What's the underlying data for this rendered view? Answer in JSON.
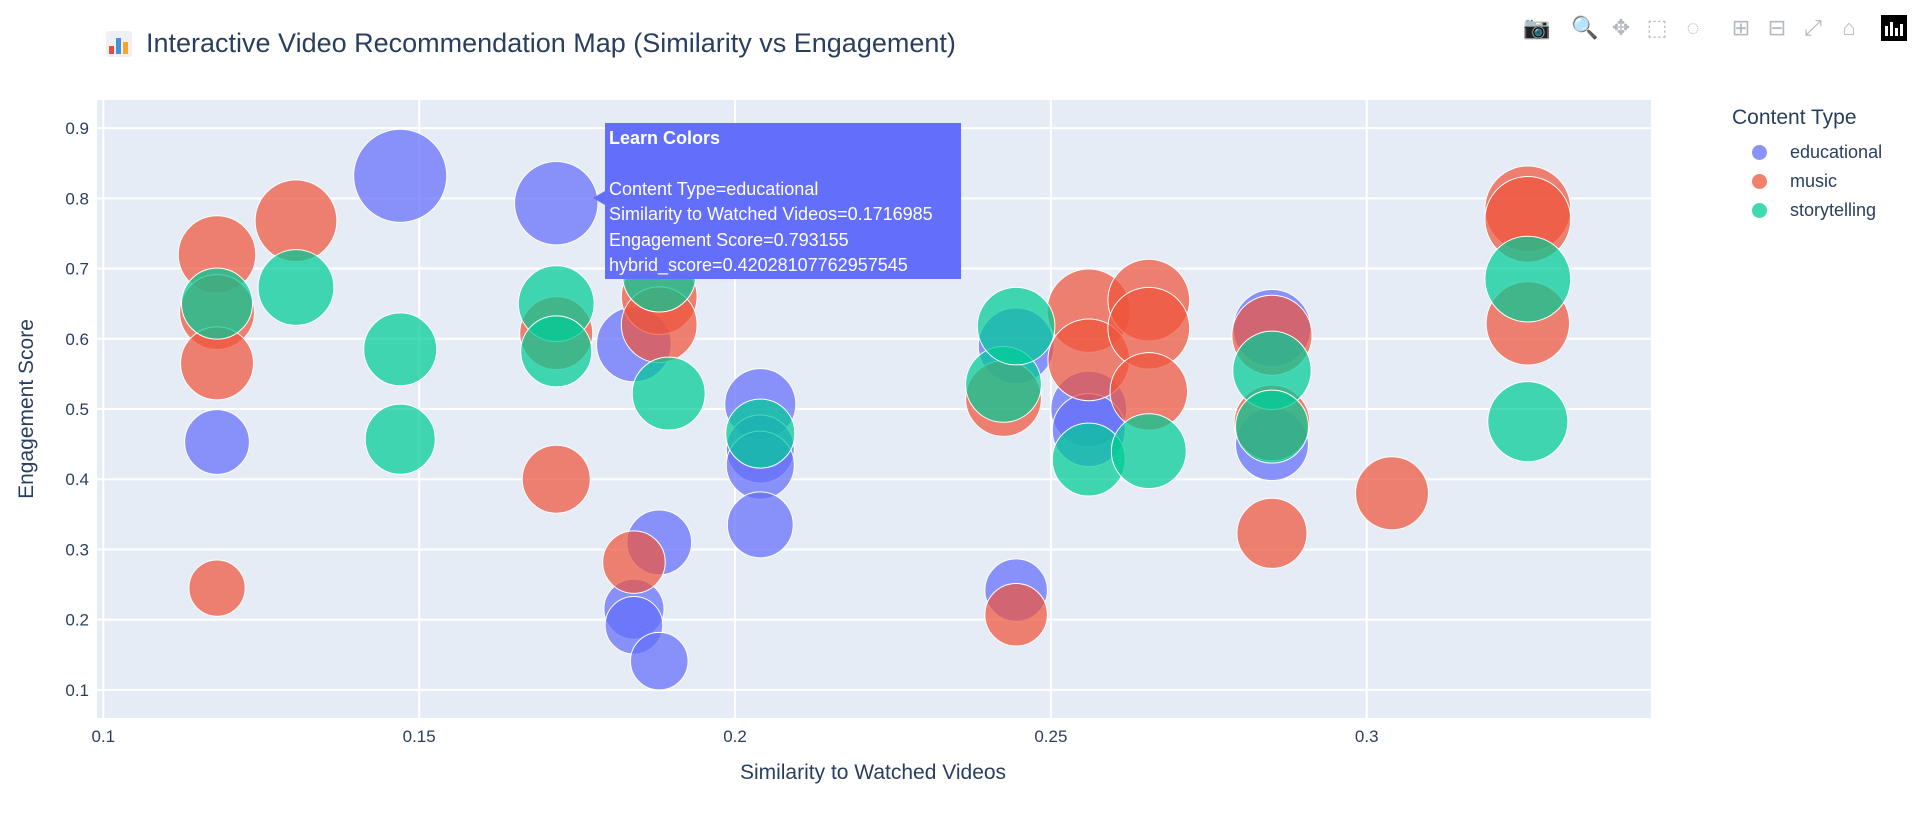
{
  "header": {
    "title": "Interactive Video Recommendation Map (Similarity vs Engagement)",
    "title_icon": "bar-chart-emoji-icon"
  },
  "modebar": {
    "buttons": [
      {
        "name": "camera-icon",
        "glyph": "📷",
        "active": false
      },
      {
        "name": "zoom-icon",
        "glyph": "🔍",
        "active": true
      },
      {
        "name": "pan-icon",
        "glyph": "✥",
        "active": false
      },
      {
        "name": "box-select-icon",
        "glyph": "⬚",
        "active": false
      },
      {
        "name": "lasso-icon",
        "glyph": "◌",
        "active": false
      },
      {
        "name": "zoom-in-icon",
        "glyph": "⊞",
        "active": false
      },
      {
        "name": "zoom-out-icon",
        "glyph": "⊟",
        "active": false
      },
      {
        "name": "autoscale-icon",
        "glyph": "⤢",
        "active": false
      },
      {
        "name": "home-icon",
        "glyph": "⌂",
        "active": false
      }
    ],
    "logo": "plotly-logo-icon"
  },
  "legend": {
    "title": "Content Type",
    "items": [
      {
        "label": "educational",
        "color": "#636efa"
      },
      {
        "label": "music",
        "color": "#ef553b"
      },
      {
        "label": "storytelling",
        "color": "#00cc96"
      }
    ]
  },
  "hover": {
    "name": "Learn Colors",
    "line1": "Content Type=educational",
    "line2": "Similarity to Watched Videos=0.1716985",
    "line3": "Engagement Score=0.793155",
    "line4": "hybrid_score=0.42028107762957545"
  },
  "chart_data": {
    "type": "scatter",
    "title": "Interactive Video Recommendation Map (Similarity vs Engagement)",
    "xlabel": "Similarity to Watched Videos",
    "ylabel": "Engagement Score",
    "xlim": [
      0.099,
      0.345
    ],
    "ylim": [
      0.06,
      0.94
    ],
    "xticks": [
      0.1,
      0.15,
      0.2,
      0.25,
      0.3
    ],
    "xtick_labels": [
      "0.1",
      "0.15",
      "0.2",
      "0.25",
      "0.3"
    ],
    "yticks": [
      0.1,
      0.2,
      0.3,
      0.4,
      0.5,
      0.6,
      0.7,
      0.8,
      0.9
    ],
    "ytick_labels": [
      "0.1",
      "0.2",
      "0.3",
      "0.4",
      "0.5",
      "0.6",
      "0.7",
      "0.8",
      "0.9"
    ],
    "grid": true,
    "legend_position": "top-right",
    "size_field": "hybrid_score",
    "series": [
      {
        "name": "educational",
        "color": "#636efa",
        "points": [
          {
            "x": 0.147,
            "y": 0.832,
            "s": 0.55
          },
          {
            "x": 0.1717,
            "y": 0.793,
            "s": 0.42
          },
          {
            "x": 0.118,
            "y": 0.453,
            "s": 0.22
          },
          {
            "x": 0.184,
            "y": 0.592,
            "s": 0.32
          },
          {
            "x": 0.188,
            "y": 0.31,
            "s": 0.22
          },
          {
            "x": 0.184,
            "y": 0.215,
            "s": 0.18
          },
          {
            "x": 0.184,
            "y": 0.192,
            "s": 0.16
          },
          {
            "x": 0.188,
            "y": 0.141,
            "s": 0.16
          },
          {
            "x": 0.204,
            "y": 0.507,
            "s": 0.28
          },
          {
            "x": 0.204,
            "y": 0.443,
            "s": 0.25
          },
          {
            "x": 0.204,
            "y": 0.42,
            "s": 0.25
          },
          {
            "x": 0.204,
            "y": 0.335,
            "s": 0.23
          },
          {
            "x": 0.2445,
            "y": 0.59,
            "s": 0.33
          },
          {
            "x": 0.2445,
            "y": 0.242,
            "s": 0.2
          },
          {
            "x": 0.256,
            "y": 0.5,
            "s": 0.33
          },
          {
            "x": 0.256,
            "y": 0.47,
            "s": 0.3
          },
          {
            "x": 0.285,
            "y": 0.615,
            "s": 0.35
          },
          {
            "x": 0.285,
            "y": 0.45,
            "s": 0.3
          }
        ]
      },
      {
        "name": "music",
        "color": "#ef553b",
        "points": [
          {
            "x": 0.118,
            "y": 0.72,
            "s": 0.35
          },
          {
            "x": 0.118,
            "y": 0.638,
            "s": 0.32
          },
          {
            "x": 0.118,
            "y": 0.565,
            "s": 0.3
          },
          {
            "x": 0.118,
            "y": 0.245,
            "s": 0.15
          },
          {
            "x": 0.1305,
            "y": 0.768,
            "s": 0.4
          },
          {
            "x": 0.1717,
            "y": 0.608,
            "s": 0.3
          },
          {
            "x": 0.1717,
            "y": 0.4,
            "s": 0.25
          },
          {
            "x": 0.184,
            "y": 0.282,
            "s": 0.2
          },
          {
            "x": 0.188,
            "y": 0.66,
            "s": 0.33
          },
          {
            "x": 0.188,
            "y": 0.62,
            "s": 0.33
          },
          {
            "x": 0.2425,
            "y": 0.515,
            "s": 0.33
          },
          {
            "x": 0.2445,
            "y": 0.207,
            "s": 0.2
          },
          {
            "x": 0.256,
            "y": 0.64,
            "s": 0.42
          },
          {
            "x": 0.256,
            "y": 0.57,
            "s": 0.4
          },
          {
            "x": 0.2655,
            "y": 0.655,
            "s": 0.4
          },
          {
            "x": 0.2655,
            "y": 0.615,
            "s": 0.4
          },
          {
            "x": 0.2655,
            "y": 0.525,
            "s": 0.35
          },
          {
            "x": 0.285,
            "y": 0.605,
            "s": 0.38
          },
          {
            "x": 0.285,
            "y": 0.48,
            "s": 0.33
          },
          {
            "x": 0.285,
            "y": 0.323,
            "s": 0.27
          },
          {
            "x": 0.304,
            "y": 0.38,
            "s": 0.3
          },
          {
            "x": 0.3255,
            "y": 0.785,
            "s": 0.45
          },
          {
            "x": 0.3255,
            "y": 0.77,
            "s": 0.45
          },
          {
            "x": 0.3255,
            "y": 0.622,
            "s": 0.42
          }
        ]
      },
      {
        "name": "storytelling",
        "color": "#00cc96",
        "points": [
          {
            "x": 0.118,
            "y": 0.65,
            "s": 0.28
          },
          {
            "x": 0.1305,
            "y": 0.673,
            "s": 0.33
          },
          {
            "x": 0.147,
            "y": 0.585,
            "s": 0.3
          },
          {
            "x": 0.147,
            "y": 0.457,
            "s": 0.27
          },
          {
            "x": 0.1717,
            "y": 0.65,
            "s": 0.33
          },
          {
            "x": 0.1717,
            "y": 0.582,
            "s": 0.28
          },
          {
            "x": 0.188,
            "y": 0.69,
            "s": 0.3
          },
          {
            "x": 0.1895,
            "y": 0.522,
            "s": 0.3
          },
          {
            "x": 0.204,
            "y": 0.465,
            "s": 0.26
          },
          {
            "x": 0.2425,
            "y": 0.535,
            "s": 0.33
          },
          {
            "x": 0.2445,
            "y": 0.618,
            "s": 0.35
          },
          {
            "x": 0.256,
            "y": 0.428,
            "s": 0.3
          },
          {
            "x": 0.2655,
            "y": 0.44,
            "s": 0.32
          },
          {
            "x": 0.285,
            "y": 0.555,
            "s": 0.36
          },
          {
            "x": 0.285,
            "y": 0.475,
            "s": 0.3
          },
          {
            "x": 0.3255,
            "y": 0.685,
            "s": 0.45
          },
          {
            "x": 0.3255,
            "y": 0.482,
            "s": 0.38
          }
        ]
      }
    ]
  }
}
